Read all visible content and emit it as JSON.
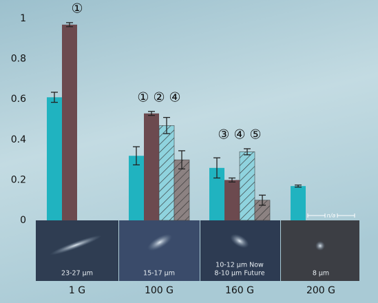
{
  "chart_data": {
    "type": "bar",
    "categories": [
      "1 G",
      "100 G",
      "160 G",
      "200 G"
    ],
    "series": [
      {
        "color": "#20b3c0",
        "hatch": false,
        "values": [
          0.61,
          0.32,
          0.26,
          0.17
        ],
        "errors": [
          0.025,
          0.045,
          0.05,
          0.005
        ]
      },
      {
        "color": "#6c4a4f",
        "hatch": false,
        "values": [
          0.97,
          0.53,
          0.2,
          null
        ],
        "errors": [
          0.01,
          0.01,
          0.01,
          null
        ]
      },
      {
        "color": "#8fd3de",
        "hatch": true,
        "values": [
          null,
          0.47,
          0.34,
          null
        ],
        "errors": [
          null,
          0.04,
          0.015,
          null
        ]
      },
      {
        "color": "#8c8282",
        "hatch": true,
        "values": [
          null,
          0.3,
          0.1,
          null
        ],
        "errors": [
          null,
          0.045,
          0.025,
          null
        ]
      }
    ],
    "annotations": [
      "①",
      "① ② ④",
      "③ ④ ⑤",
      null
    ],
    "image_captions": [
      [
        "23-27 µm"
      ],
      [
        "15-17 µm"
      ],
      [
        "10-12 µm Now",
        "8-10 µm Future"
      ],
      [
        "8 µm"
      ]
    ],
    "na_label": "n/a",
    "ylim": [
      0,
      1
    ],
    "yticks": [
      0,
      0.2,
      0.4,
      0.6,
      0.8,
      1
    ],
    "grid": false
  }
}
